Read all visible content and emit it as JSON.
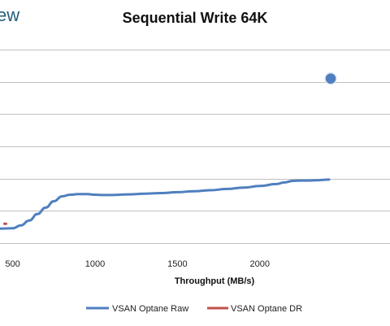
{
  "logo": {
    "text": "ew"
  },
  "chart_data": {
    "type": "line",
    "title": "Sequential Write 64K",
    "xlabel": "Throughput (MB/s)",
    "ylabel": "",
    "xlim": [
      423,
      2790
    ],
    "ylim": [
      -0.2,
      6.2
    ],
    "x_ticks": [
      500,
      1000,
      1500,
      2000
    ],
    "y_gridlines": [
      0,
      1,
      2,
      3,
      4,
      5,
      6
    ],
    "grid": true,
    "legend": "bottom",
    "series": [
      {
        "name": "VSAN Optane Raw",
        "color": "#4f7fbf",
        "x": [
          423,
          500,
          550,
          600,
          650,
          700,
          750,
          800,
          850,
          900,
          950,
          1000,
          1050,
          1100,
          1200,
          1300,
          1400,
          1500,
          1600,
          1700,
          1800,
          1900,
          2000,
          2100,
          2150,
          2200,
          2250,
          2300,
          2350,
          2420
        ],
        "y": [
          0.45,
          0.46,
          0.55,
          0.7,
          0.9,
          1.1,
          1.3,
          1.45,
          1.5,
          1.52,
          1.52,
          1.5,
          1.49,
          1.49,
          1.51,
          1.53,
          1.55,
          1.58,
          1.61,
          1.64,
          1.68,
          1.72,
          1.77,
          1.83,
          1.88,
          1.93,
          1.94,
          1.94,
          1.95,
          1.97
        ]
      },
      {
        "name": "VSAN Optane DR",
        "color": "#c0504d",
        "x": [
          450,
          460
        ],
        "y": [
          0.6,
          0.6
        ]
      }
    ],
    "marker": {
      "series": "VSAN Optane Raw",
      "color": "#4f7fbf",
      "x": 2430,
      "y": 5.1
    }
  }
}
